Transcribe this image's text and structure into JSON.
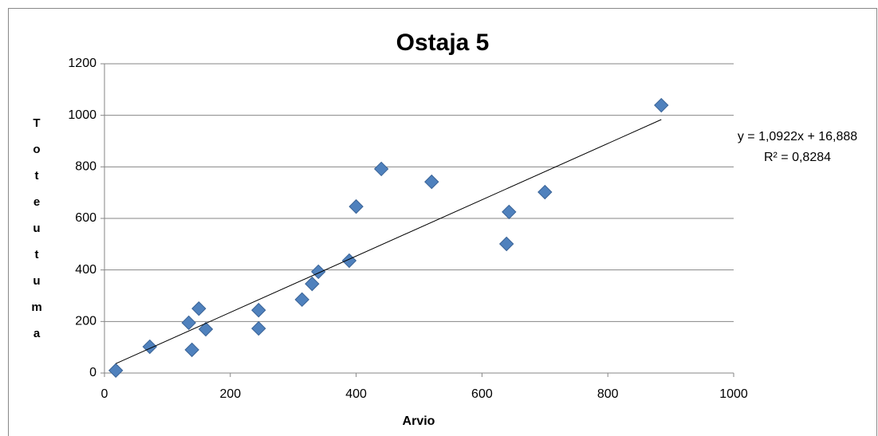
{
  "chart_data": {
    "type": "scatter",
    "title": "Ostaja 5",
    "xlabel": "Arvio",
    "ylabel": "Toteutuma",
    "x": [
      18,
      72,
      134,
      139,
      150,
      161,
      245,
      245,
      314,
      330,
      340,
      389,
      400,
      440,
      520,
      639,
      643,
      700,
      885
    ],
    "series": [
      {
        "name": "Toteutuma",
        "color": "#4f81bd",
        "values": [
          10,
          102,
          195,
          90,
          250,
          170,
          244,
          173,
          285,
          346,
          393,
          436,
          646,
          792,
          742,
          501,
          625,
          702,
          1039
        ]
      }
    ],
    "xlim": [
      0,
      1000
    ],
    "xticks": [
      0,
      200,
      400,
      600,
      800,
      1000
    ],
    "ylim": [
      0,
      1200
    ],
    "yticks": [
      0,
      200,
      400,
      600,
      800,
      1000,
      1200
    ],
    "grid": true,
    "trendline": {
      "slope": 1.0922,
      "intercept": 16.888,
      "equation": "y = 1,0922x + 16,888",
      "r_squared": "R² = 0,8284"
    }
  }
}
